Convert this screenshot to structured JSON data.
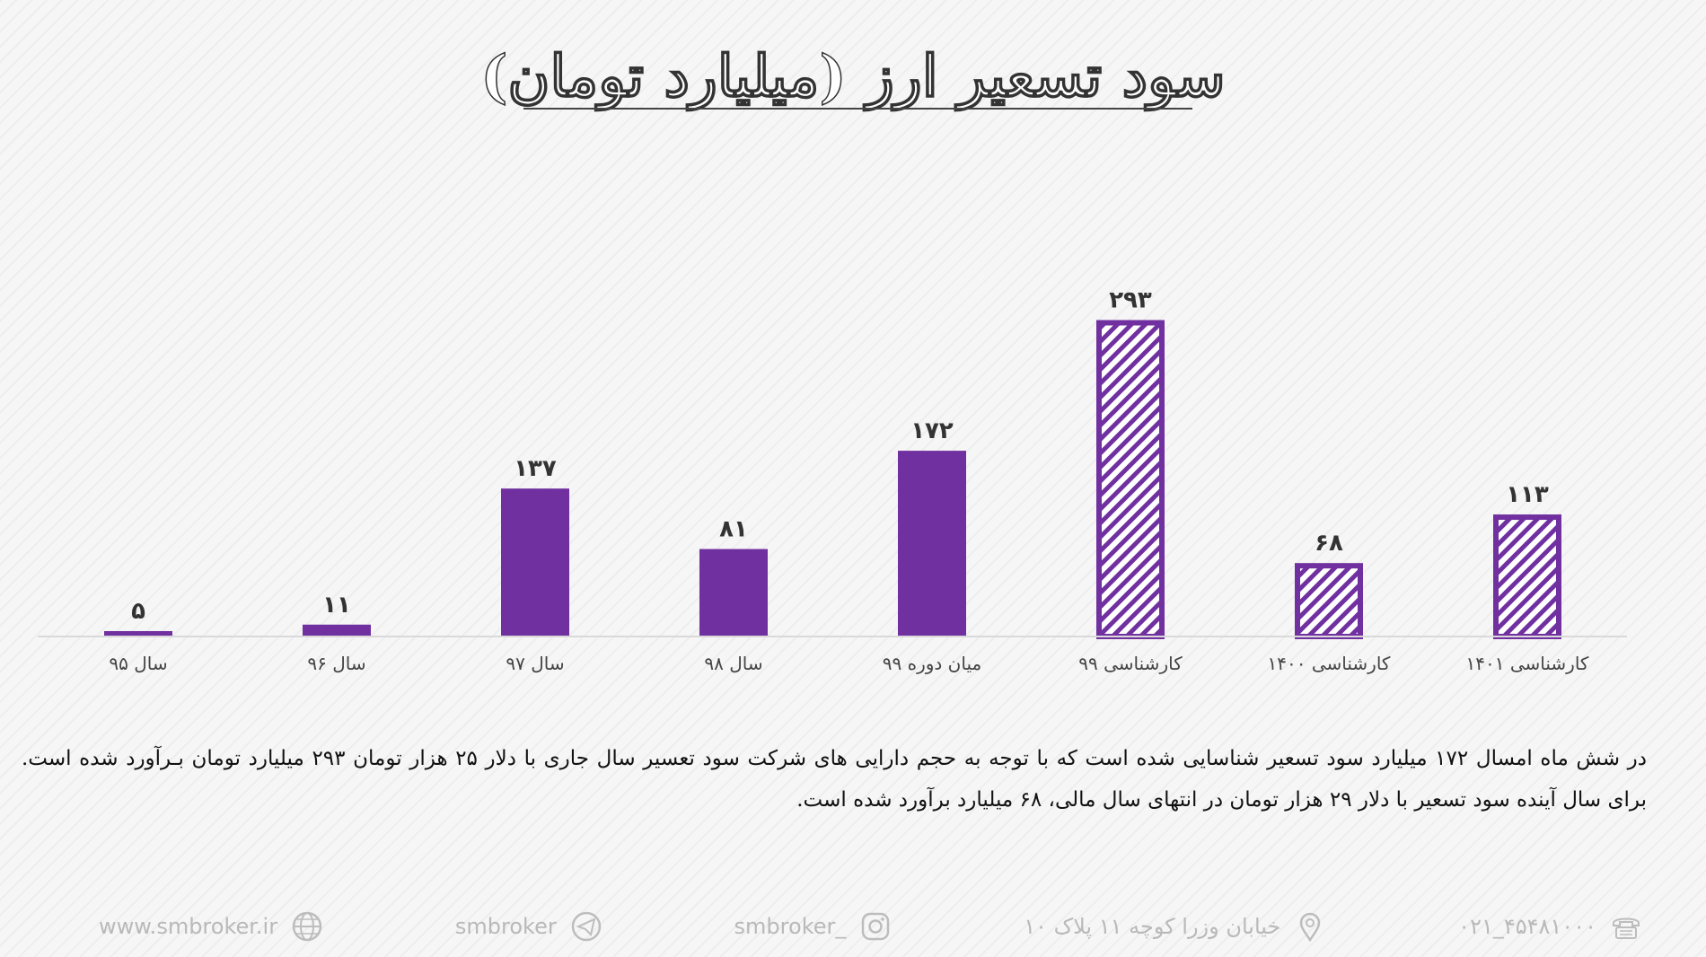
{
  "title": "سود تسعیر ارز (میلیارد تومان)",
  "chart_data": {
    "type": "bar",
    "categories": [
      "سال ۹۵",
      "سال ۹۶",
      "سال ۹۷",
      "سال ۹۸",
      "میان دوره ۹۹",
      "کارشناسی ۹۹",
      "کارشناسی ۱۴۰۰",
      "کارشناسی ۱۴۰۱"
    ],
    "values": [
      5,
      11,
      137,
      81,
      172,
      293,
      68,
      113
    ],
    "value_labels": [
      "۵",
      "۱۱",
      "۱۳۷",
      "۸۱",
      "۱۷۲",
      "۲۹۳",
      "۶۸",
      "۱۱۳"
    ],
    "bar_style": [
      "solid",
      "solid",
      "solid",
      "solid",
      "solid",
      "hatched",
      "hatched",
      "hatched"
    ],
    "ylim": [
      0,
      300
    ],
    "grid": false,
    "legend": "none",
    "colors": {
      "bar": "#7030a0",
      "baseline": "#d9d9d9",
      "text": "#333333"
    }
  },
  "paragraph": "در شش ماه امسال ۱۷۲ میلیارد سود تسعیر شناسایی شده است که با توجه به حجم دارایی های شرکت سود تعسیر سال جاری با دلار ۲۵ هزار تومان ۲۹۳ میلیارد تومان بـرآورد شده است. برای سال آینده سود تسعیر با دلار ۲۹ هزار تومان در انتهای سال مالی، ۶۸ میلیارد برآورد شده است.",
  "footer": {
    "website": "www.smbroker.ir",
    "telegram": "smbroker",
    "instagram": "smbroker_",
    "address": "خیابان وزرا کوچه ۱۱ پلاک ۱۰",
    "phone": "۰۲۱_۴۵۴۸۱۰۰۰",
    "icons": [
      "globe-icon",
      "telegram-icon",
      "instagram-icon",
      "location-pin-icon",
      "phone-icon"
    ]
  }
}
